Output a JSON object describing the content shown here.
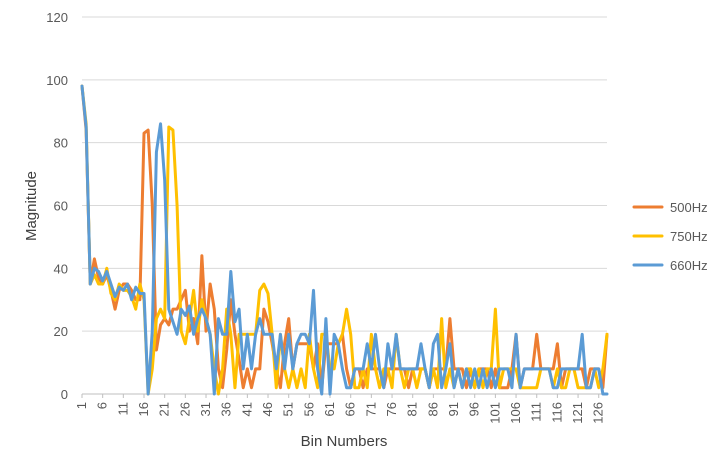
{
  "chart_data": {
    "type": "line",
    "title": "",
    "xlabel": "Bin Numbers",
    "ylabel": "Magnitude",
    "ylim": [
      0,
      120
    ],
    "yticks": [
      0,
      20,
      40,
      60,
      80,
      100,
      120
    ],
    "xlim": [
      1,
      128
    ],
    "xticks": [
      1,
      6,
      11,
      16,
      21,
      26,
      31,
      36,
      41,
      46,
      51,
      56,
      61,
      66,
      71,
      76,
      81,
      86,
      91,
      96,
      101,
      106,
      111,
      116,
      121,
      126
    ],
    "grid": "horizontal",
    "legend_position": "right",
    "series": [
      {
        "name": "500Hz",
        "color": "#ED7D31",
        "values": [
          98,
          84,
          35,
          43,
          37,
          35,
          38,
          33,
          27,
          33,
          35,
          35,
          33,
          30,
          30,
          83,
          84,
          60,
          14,
          22,
          24,
          22,
          27,
          27,
          30,
          33,
          20,
          24,
          16,
          44,
          20,
          35,
          27,
          8,
          2,
          14,
          30,
          19,
          11,
          2,
          8,
          2,
          8,
          8,
          27,
          23,
          16,
          8,
          2,
          16,
          24,
          8,
          16,
          16,
          16,
          16,
          8,
          16,
          2,
          16,
          16,
          16,
          16,
          19,
          8,
          2,
          8,
          8,
          2,
          8,
          8,
          8,
          8,
          2,
          8,
          8,
          8,
          8,
          8,
          2,
          8,
          8,
          8,
          8,
          2,
          8,
          8,
          8,
          8,
          24,
          8,
          8,
          8,
          2,
          8,
          2,
          8,
          8,
          8,
          2,
          8,
          2,
          2,
          2,
          8,
          19,
          2,
          8,
          8,
          8,
          19,
          8,
          8,
          8,
          8,
          16,
          2,
          8,
          8,
          8,
          8,
          8,
          2,
          8,
          8,
          8,
          2,
          19
        ]
      },
      {
        "name": "750Hz",
        "color": "#FFC000",
        "values": [
          98,
          86,
          35,
          38,
          35,
          35,
          40,
          32,
          30,
          35,
          33,
          33,
          31,
          27,
          35,
          30,
          0,
          8,
          24,
          27,
          24,
          85,
          84,
          60,
          20,
          16,
          24,
          33,
          20,
          30,
          24,
          19,
          8,
          0,
          8,
          27,
          19,
          2,
          19,
          19,
          19,
          19,
          19,
          33,
          35,
          32,
          19,
          2,
          19,
          8,
          2,
          8,
          2,
          8,
          2,
          19,
          8,
          2,
          19,
          19,
          8,
          8,
          16,
          19,
          27,
          19,
          2,
          2,
          8,
          2,
          19,
          8,
          2,
          8,
          8,
          2,
          19,
          8,
          2,
          8,
          8,
          2,
          8,
          8,
          2,
          8,
          2,
          24,
          2,
          8,
          2,
          8,
          2,
          8,
          8,
          2,
          8,
          2,
          8,
          8,
          27,
          2,
          8,
          8,
          8,
          8,
          2,
          2,
          2,
          2,
          2,
          8,
          8,
          8,
          2,
          8,
          2,
          2,
          8,
          8,
          2,
          2,
          2,
          2,
          8,
          2,
          8,
          19
        ]
      },
      {
        "name": "660Hz",
        "color": "#5B9BD5",
        "values": [
          98,
          85,
          35,
          40,
          39,
          36,
          39,
          35,
          31,
          34,
          33,
          35,
          30,
          34,
          32,
          32,
          0,
          20,
          77,
          86,
          68,
          27,
          23,
          19,
          27,
          25,
          28,
          19,
          24,
          27,
          24,
          19,
          0,
          24,
          19,
          19,
          39,
          23,
          27,
          8,
          19,
          8,
          19,
          24,
          19,
          19,
          19,
          8,
          19,
          8,
          19,
          8,
          16,
          19,
          19,
          16,
          33,
          8,
          0,
          24,
          0,
          19,
          16,
          8,
          2,
          2,
          8,
          8,
          8,
          16,
          8,
          19,
          8,
          2,
          16,
          8,
          19,
          8,
          8,
          8,
          8,
          8,
          16,
          8,
          2,
          16,
          19,
          2,
          8,
          16,
          2,
          8,
          2,
          8,
          2,
          8,
          2,
          8,
          2,
          8,
          2,
          8,
          8,
          8,
          2,
          19,
          2,
          8,
          8,
          8,
          8,
          8,
          8,
          8,
          2,
          2,
          8,
          8,
          8,
          8,
          8,
          19,
          2,
          2,
          8,
          8,
          0,
          0
        ]
      }
    ]
  }
}
